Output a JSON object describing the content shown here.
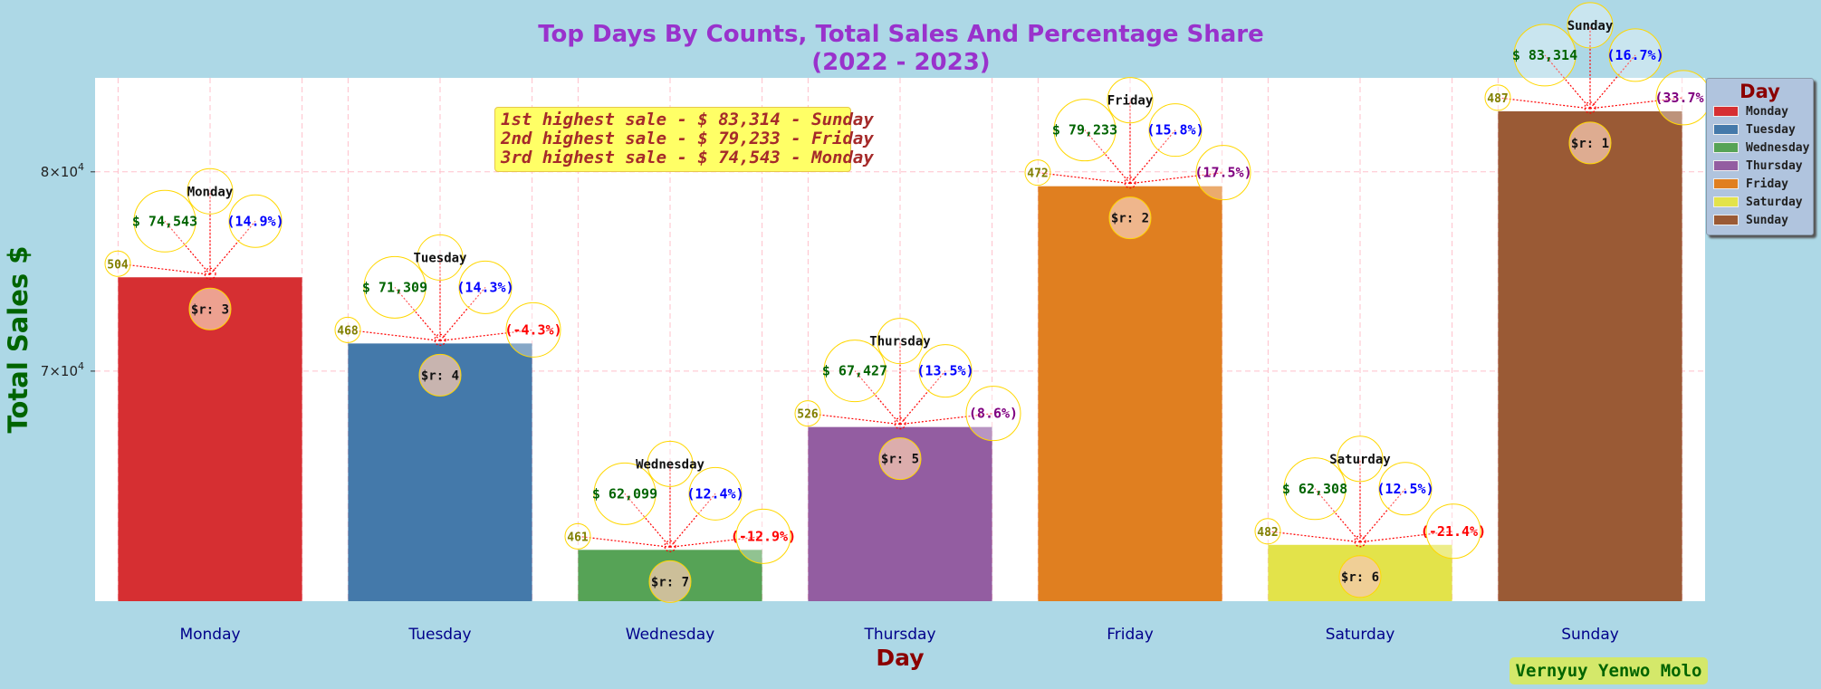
{
  "chart_data": {
    "type": "bar",
    "title": "Top Days By Counts, Total Sales And Percentage Share",
    "subtitle": "(2022 - 2023)",
    "xlabel": "Day",
    "ylabel": "Total Sales $",
    "yscale": "log",
    "ylim": [
      60000,
      85200
    ],
    "yticks": [
      {
        "value": 70000,
        "label": "7×10^4"
      },
      {
        "value": 80000,
        "label": "8×10^4"
      }
    ],
    "grid": true,
    "legend_title": "Day",
    "legend_position": "upper-right-outside",
    "categories": [
      "Monday",
      "Tuesday",
      "Wednesday",
      "Thursday",
      "Friday",
      "Saturday",
      "Sunday"
    ],
    "values": [
      74543,
      71309,
      62099,
      67427,
      79233,
      62308,
      83314
    ],
    "colors": [
      "#d62f32",
      "#4479aa",
      "#56a356",
      "#935da1",
      "#e07f20",
      "#e3e34a",
      "#9a5a35"
    ],
    "bars": [
      {
        "day": "Monday",
        "value": 74543,
        "sales_label": "$ 74,543",
        "count": "504",
        "share": "(14.9%)",
        "change": "",
        "rank": "$r: 3"
      },
      {
        "day": "Tuesday",
        "value": 71309,
        "sales_label": "$ 71,309",
        "count": "468",
        "share": "(14.3%)",
        "change": "(-4.3%)",
        "rank": "$r: 4"
      },
      {
        "day": "Wednesday",
        "value": 62099,
        "sales_label": "$ 62,099",
        "count": "461",
        "share": "(12.4%)",
        "change": "(-12.9%)",
        "rank": "$r: 7"
      },
      {
        "day": "Thursday",
        "value": 67427,
        "sales_label": "$ 67,427",
        "count": "526",
        "share": "(13.5%)",
        "change": "(8.6%)",
        "rank": "$r: 5"
      },
      {
        "day": "Friday",
        "value": 79233,
        "sales_label": "$ 79,233",
        "count": "472",
        "share": "(15.8%)",
        "change": "(17.5%)",
        "rank": "$r: 2"
      },
      {
        "day": "Saturday",
        "value": 62308,
        "sales_label": "$ 62,308",
        "count": "482",
        "share": "(12.5%)",
        "change": "(-21.4%)",
        "rank": "$r: 6"
      },
      {
        "day": "Sunday",
        "value": 83314,
        "sales_label": "$ 83,314",
        "count": "487",
        "share": "(16.7%)",
        "change": "(33.7%)",
        "rank": "$r: 1"
      }
    ],
    "annotations": [
      "1st highest sale - $ 83,314 - Sunday",
      "2nd highest sale - $ 79,233 - Friday",
      "3rd highest sale - $ 74,543 - Monday"
    ],
    "signature": "Vernyuy Yenwo Molo",
    "style_colors": {
      "background": "#add8e6",
      "plot_background": "#ffffff",
      "grid": "#ffc0cb",
      "title": "#9932cc",
      "ylabel": "#006400",
      "xlabel": "#8b0000",
      "tick_label": "#00008b",
      "count_label": "#808000",
      "sales_label": "#006400",
      "share_label": "#0000ff",
      "change_positive": "#800080",
      "change_negative": "#ff0000",
      "connector": "#ff0000",
      "bubble_edge": "#ffd700"
    }
  }
}
